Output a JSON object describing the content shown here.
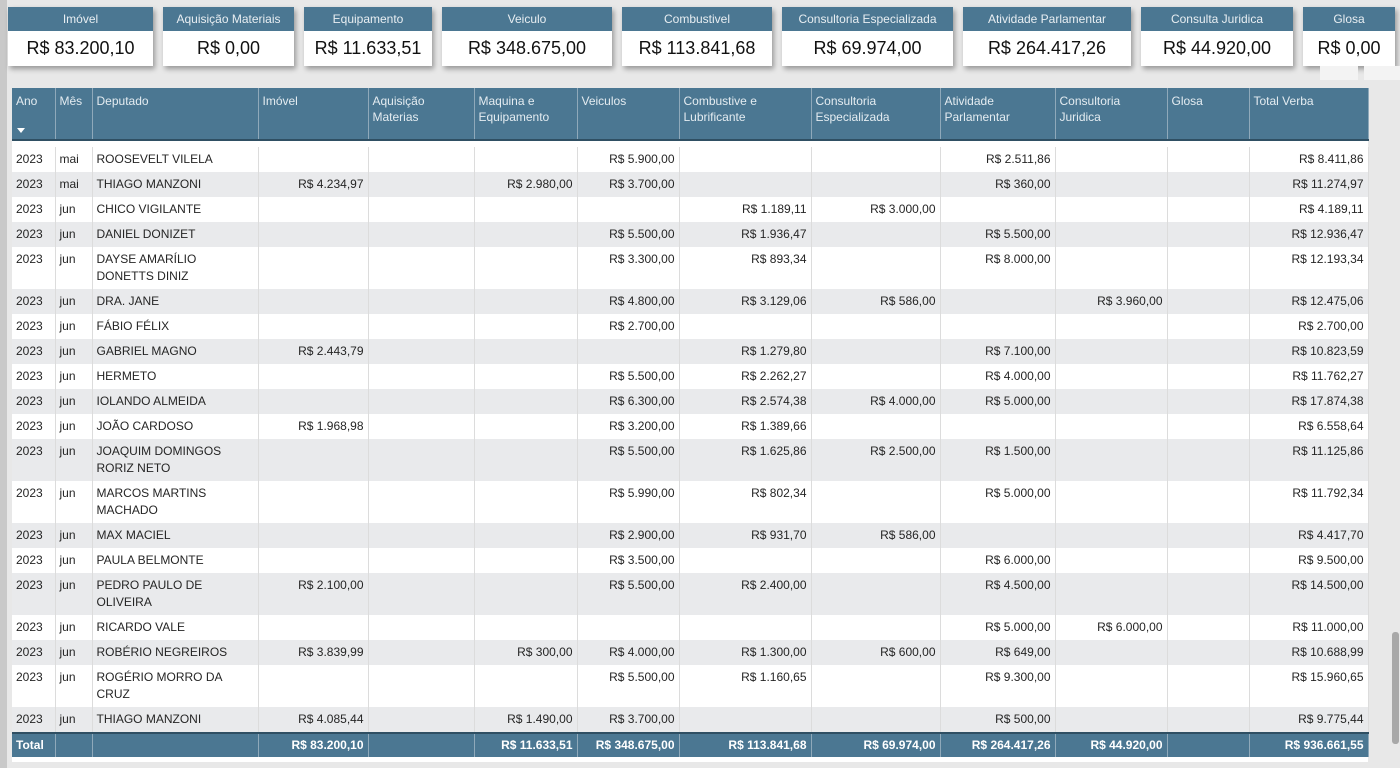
{
  "cards": [
    {
      "label": "Imóvel",
      "value": "R$ 83.200,10"
    },
    {
      "label": "Aquisição Materiais",
      "value": "R$ 0,00"
    },
    {
      "label": "Equipamento",
      "value": "R$ 11.633,51"
    },
    {
      "label": "Veiculo",
      "value": "R$ 348.675,00"
    },
    {
      "label": "Combustivel",
      "value": "R$ 113.841,68"
    },
    {
      "label": "Consultoria Especializada",
      "value": "R$ 69.974,00"
    },
    {
      "label": "Atividade Parlamentar",
      "value": "R$ 264.417,26"
    },
    {
      "label": "Consulta Juridica",
      "value": "R$ 44.920,00"
    },
    {
      "label": "Glosa",
      "value": "R$ 0,00"
    }
  ],
  "table": {
    "headers": [
      "Ano",
      "Mês",
      "Deputado",
      "Imóvel",
      "Aquisição Materias",
      "Maquina e Equipamento",
      "Veiculos",
      "Combustive e Lubrificante",
      "Consultoria Especializada",
      "Atividade Parlamentar",
      "Consultoria Juridica",
      "Glosa",
      "Total Verba"
    ],
    "rows": [
      [
        "2023",
        "mai",
        "ROOSEVELT VILELA",
        "",
        "",
        "",
        "R$ 5.900,00",
        "",
        "",
        "R$ 2.511,86",
        "",
        "",
        "R$ 8.411,86"
      ],
      [
        "2023",
        "mai",
        "THIAGO MANZONI",
        "R$ 4.234,97",
        "",
        "R$ 2.980,00",
        "R$ 3.700,00",
        "",
        "",
        "R$ 360,00",
        "",
        "",
        "R$ 11.274,97"
      ],
      [
        "2023",
        "jun",
        "CHICO VIGILANTE",
        "",
        "",
        "",
        "",
        "R$ 1.189,11",
        "R$ 3.000,00",
        "",
        "",
        "",
        "R$ 4.189,11"
      ],
      [
        "2023",
        "jun",
        "DANIEL DONIZET",
        "",
        "",
        "",
        "R$ 5.500,00",
        "R$ 1.936,47",
        "",
        "R$ 5.500,00",
        "",
        "",
        "R$ 12.936,47"
      ],
      [
        "2023",
        "jun",
        "DAYSE AMARÍLIO DONETTS DINIZ",
        "",
        "",
        "",
        "R$ 3.300,00",
        "R$ 893,34",
        "",
        "R$ 8.000,00",
        "",
        "",
        "R$ 12.193,34"
      ],
      [
        "2023",
        "jun",
        "DRA. JANE",
        "",
        "",
        "",
        "R$ 4.800,00",
        "R$ 3.129,06",
        "R$ 586,00",
        "",
        "R$ 3.960,00",
        "",
        "R$ 12.475,06"
      ],
      [
        "2023",
        "jun",
        "FÁBIO FÉLIX",
        "",
        "",
        "",
        "R$ 2.700,00",
        "",
        "",
        "",
        "",
        "",
        "R$ 2.700,00"
      ],
      [
        "2023",
        "jun",
        "GABRIEL MAGNO",
        "R$ 2.443,79",
        "",
        "",
        "",
        "R$ 1.279,80",
        "",
        "R$ 7.100,00",
        "",
        "",
        "R$ 10.823,59"
      ],
      [
        "2023",
        "jun",
        "HERMETO",
        "",
        "",
        "",
        "R$ 5.500,00",
        "R$ 2.262,27",
        "",
        "R$ 4.000,00",
        "",
        "",
        "R$ 11.762,27"
      ],
      [
        "2023",
        "jun",
        "IOLANDO ALMEIDA",
        "",
        "",
        "",
        "R$ 6.300,00",
        "R$ 2.574,38",
        "R$ 4.000,00",
        "R$ 5.000,00",
        "",
        "",
        "R$ 17.874,38"
      ],
      [
        "2023",
        "jun",
        "JOÃO CARDOSO",
        "R$ 1.968,98",
        "",
        "",
        "R$ 3.200,00",
        "R$ 1.389,66",
        "",
        "",
        "",
        "",
        "R$ 6.558,64"
      ],
      [
        "2023",
        "jun",
        "JOAQUIM DOMINGOS RORIZ NETO",
        "",
        "",
        "",
        "R$ 5.500,00",
        "R$ 1.625,86",
        "R$ 2.500,00",
        "R$ 1.500,00",
        "",
        "",
        "R$ 11.125,86"
      ],
      [
        "2023",
        "jun",
        "MARCOS MARTINS MACHADO",
        "",
        "",
        "",
        "R$ 5.990,00",
        "R$ 802,34",
        "",
        "R$ 5.000,00",
        "",
        "",
        "R$ 11.792,34"
      ],
      [
        "2023",
        "jun",
        "MAX MACIEL",
        "",
        "",
        "",
        "R$ 2.900,00",
        "R$ 931,70",
        "R$ 586,00",
        "",
        "",
        "",
        "R$ 4.417,70"
      ],
      [
        "2023",
        "jun",
        "PAULA BELMONTE",
        "",
        "",
        "",
        "R$ 3.500,00",
        "",
        "",
        "R$ 6.000,00",
        "",
        "",
        "R$ 9.500,00"
      ],
      [
        "2023",
        "jun",
        "PEDRO PAULO DE OLIVEIRA",
        "R$ 2.100,00",
        "",
        "",
        "R$ 5.500,00",
        "R$ 2.400,00",
        "",
        "R$ 4.500,00",
        "",
        "",
        "R$ 14.500,00"
      ],
      [
        "2023",
        "jun",
        "RICARDO VALE",
        "",
        "",
        "",
        "",
        "",
        "",
        "R$ 5.000,00",
        "R$ 6.000,00",
        "",
        "R$ 11.000,00"
      ],
      [
        "2023",
        "jun",
        "ROBÉRIO NEGREIROS",
        "R$ 3.839,99",
        "",
        "R$ 300,00",
        "R$ 4.000,00",
        "R$ 1.300,00",
        "R$ 600,00",
        "R$ 649,00",
        "",
        "",
        "R$ 10.688,99"
      ],
      [
        "2023",
        "jun",
        "ROGÉRIO MORRO DA CRUZ",
        "",
        "",
        "",
        "R$ 5.500,00",
        "R$ 1.160,65",
        "",
        "R$ 9.300,00",
        "",
        "",
        "R$ 15.960,65"
      ],
      [
        "2023",
        "jun",
        "THIAGO MANZONI",
        "R$ 4.085,44",
        "",
        "R$ 1.490,00",
        "R$ 3.700,00",
        "",
        "",
        "R$ 500,00",
        "",
        "",
        "R$ 9.775,44"
      ]
    ],
    "total": [
      "Total",
      "",
      "",
      "R$ 83.200,10",
      "",
      "R$ 11.633,51",
      "R$ 348.675,00",
      "R$ 113.841,68",
      "R$ 69.974,00",
      "R$ 264.417,26",
      "R$ 44.920,00",
      "",
      "R$ 936.661,55"
    ]
  }
}
